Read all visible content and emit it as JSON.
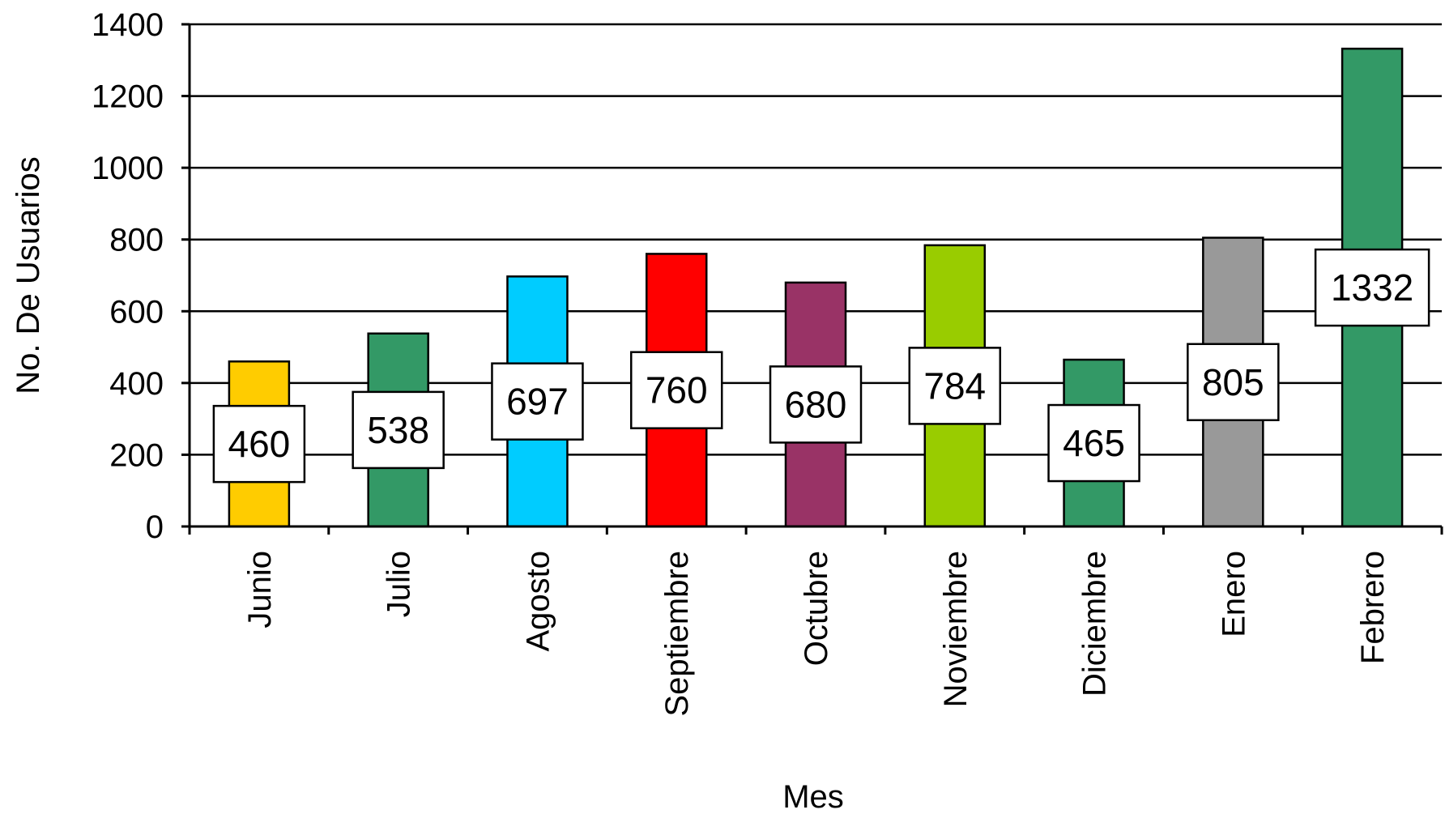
{
  "chart_data": {
    "type": "bar",
    "title": "",
    "xlabel": "Mes",
    "ylabel": "No. De Usuarios",
    "ylim": [
      0,
      1400
    ],
    "yticks": [
      0,
      200,
      400,
      600,
      800,
      1000,
      1200,
      1400
    ],
    "grid": true,
    "legend": "none",
    "categories": [
      "Junio",
      "Julio",
      "Agosto",
      "Septiembre",
      "Octubre",
      "Noviembre",
      "Diciembre",
      "Enero",
      "Febrero"
    ],
    "values": [
      460,
      538,
      697,
      760,
      680,
      784,
      465,
      805,
      1332
    ],
    "data_labels": [
      "460",
      "538",
      "697",
      "760",
      "680",
      "784",
      "465",
      "805",
      "1332"
    ],
    "colors": [
      "#FFCC00",
      "#339966",
      "#00CCFF",
      "#FF0000",
      "#993366",
      "#99CC00",
      "#339966",
      "#999999",
      "#339966"
    ]
  }
}
